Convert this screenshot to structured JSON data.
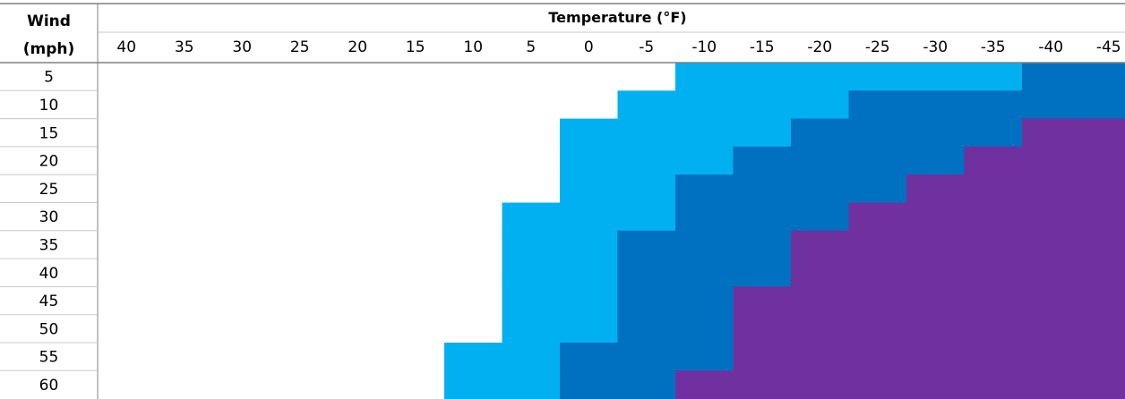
{
  "chart_data": {
    "type": "heatmap",
    "title": "Temperature (°F)",
    "row_header_line1": "Wind",
    "row_header_line2": "(mph)",
    "x_tick_labels": [
      "40",
      "35",
      "30",
      "25",
      "20",
      "15",
      "10",
      "5",
      "0",
      "-5",
      "-10",
      "-15",
      "-20",
      "-25",
      "-30",
      "-35",
      "-40",
      "-45"
    ],
    "y_tick_labels": [
      "5",
      "10",
      "15",
      "20",
      "25",
      "30",
      "35",
      "40",
      "45",
      "50",
      "55",
      "60"
    ],
    "colors": {
      "0": "#ffffff",
      "1": "#00b0f0",
      "2": "#0070c0",
      "3": "#7030a0"
    },
    "values": [
      [
        0,
        0,
        0,
        0,
        0,
        0,
        0,
        0,
        0,
        0,
        1,
        1,
        1,
        1,
        1,
        1,
        2,
        2
      ],
      [
        0,
        0,
        0,
        0,
        0,
        0,
        0,
        0,
        0,
        1,
        1,
        1,
        1,
        2,
        2,
        2,
        2,
        2
      ],
      [
        0,
        0,
        0,
        0,
        0,
        0,
        0,
        0,
        1,
        1,
        1,
        1,
        2,
        2,
        2,
        2,
        3,
        3
      ],
      [
        0,
        0,
        0,
        0,
        0,
        0,
        0,
        0,
        1,
        1,
        1,
        2,
        2,
        2,
        2,
        3,
        3,
        3
      ],
      [
        0,
        0,
        0,
        0,
        0,
        0,
        0,
        0,
        1,
        1,
        2,
        2,
        2,
        2,
        3,
        3,
        3,
        3
      ],
      [
        0,
        0,
        0,
        0,
        0,
        0,
        0,
        1,
        1,
        1,
        2,
        2,
        2,
        3,
        3,
        3,
        3,
        3
      ],
      [
        0,
        0,
        0,
        0,
        0,
        0,
        0,
        1,
        1,
        2,
        2,
        2,
        3,
        3,
        3,
        3,
        3,
        3
      ],
      [
        0,
        0,
        0,
        0,
        0,
        0,
        0,
        1,
        1,
        2,
        2,
        2,
        3,
        3,
        3,
        3,
        3,
        3
      ],
      [
        0,
        0,
        0,
        0,
        0,
        0,
        0,
        1,
        1,
        2,
        2,
        3,
        3,
        3,
        3,
        3,
        3,
        3
      ],
      [
        0,
        0,
        0,
        0,
        0,
        0,
        0,
        1,
        1,
        2,
        2,
        3,
        3,
        3,
        3,
        3,
        3,
        3
      ],
      [
        0,
        0,
        0,
        0,
        0,
        0,
        1,
        1,
        2,
        2,
        2,
        3,
        3,
        3,
        3,
        3,
        3,
        3
      ],
      [
        0,
        0,
        0,
        0,
        0,
        0,
        1,
        1,
        2,
        2,
        3,
        3,
        3,
        3,
        3,
        3,
        3,
        3
      ]
    ]
  }
}
